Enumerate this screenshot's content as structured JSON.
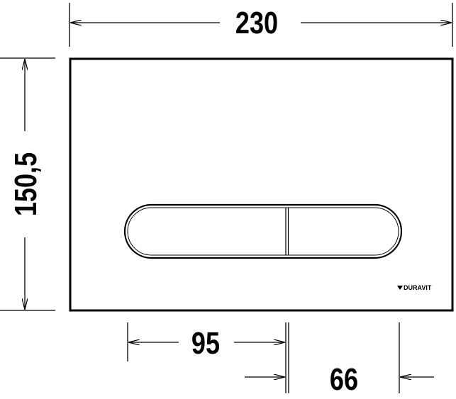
{
  "dimensions": {
    "width": "230",
    "height": "150,5",
    "button_offset": "95",
    "button_depth": "66"
  },
  "logo": {
    "text": "DURAVIT"
  },
  "colors": {
    "line": "#000000",
    "background": "#ffffff"
  }
}
